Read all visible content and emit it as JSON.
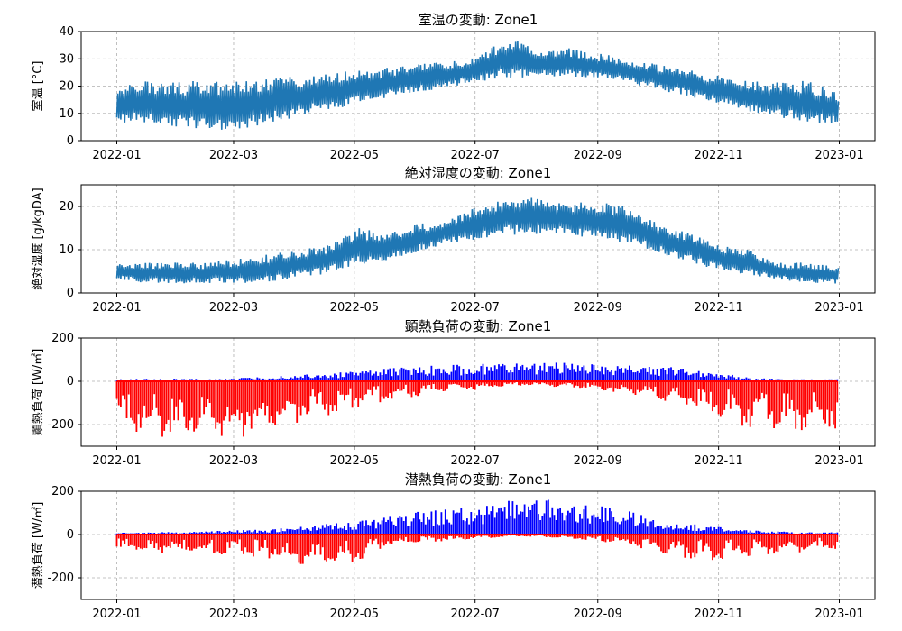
{
  "chart_data": [
    {
      "type": "line",
      "title": "室温の変動: Zone1",
      "ylabel": "室温 [°C]",
      "xlim": [
        "2021-12-14",
        "2023-01-19"
      ],
      "ylim": [
        0,
        40
      ],
      "yticks": [
        0,
        10,
        20,
        30,
        40
      ],
      "xticks": [
        "2022-01",
        "2022-03",
        "2022-05",
        "2022-07",
        "2022-09",
        "2022-11",
        "2023-01"
      ],
      "grid": true,
      "color": "#1f77b4",
      "series": [
        {
          "x": [
            "2022-01-01",
            "2022-01-15",
            "2022-02-01",
            "2022-02-15",
            "2022-03-01",
            "2022-03-15",
            "2022-04-01",
            "2022-04-15",
            "2022-05-01",
            "2022-05-15",
            "2022-06-01",
            "2022-06-15",
            "2022-07-01",
            "2022-07-15",
            "2022-08-01",
            "2022-08-15",
            "2022-09-01",
            "2022-09-15",
            "2022-10-01",
            "2022-10-15",
            "2022-11-01",
            "2022-11-15",
            "2022-12-01",
            "2022-12-15",
            "2022-12-31"
          ],
          "min": [
            6,
            5,
            4,
            3,
            3,
            5,
            8,
            10,
            13,
            15,
            17,
            19,
            21,
            22,
            23,
            23,
            22,
            21,
            18,
            16,
            13,
            10,
            8,
            6,
            5
          ],
          "max": [
            22,
            22,
            22,
            22,
            22,
            23,
            24,
            25,
            26,
            27,
            28,
            29,
            31,
            38,
            33,
            34,
            32,
            30,
            28,
            26,
            24,
            22,
            22,
            22,
            18
          ]
        }
      ]
    },
    {
      "type": "line",
      "title": "絶対湿度の変動: Zone1",
      "ylabel": "絶対湿度 [g/kgDA]",
      "xlim": [
        "2021-12-14",
        "2023-01-19"
      ],
      "ylim": [
        0,
        25
      ],
      "yticks": [
        0,
        10,
        20
      ],
      "xticks": [
        "2022-01",
        "2022-03",
        "2022-05",
        "2022-07",
        "2022-09",
        "2022-11",
        "2023-01"
      ],
      "grid": true,
      "color": "#1f77b4",
      "series": [
        {
          "x": [
            "2022-01-01",
            "2022-01-15",
            "2022-02-01",
            "2022-02-15",
            "2022-03-01",
            "2022-03-15",
            "2022-04-01",
            "2022-04-15",
            "2022-05-01",
            "2022-05-15",
            "2022-06-01",
            "2022-06-15",
            "2022-07-01",
            "2022-07-15",
            "2022-08-01",
            "2022-08-15",
            "2022-09-01",
            "2022-09-15",
            "2022-10-01",
            "2022-10-15",
            "2022-11-01",
            "2022-11-15",
            "2022-12-01",
            "2022-12-15",
            "2022-12-31"
          ],
          "min": [
            3,
            2,
            2,
            2,
            2,
            2,
            3,
            4,
            6,
            7,
            9,
            11,
            12,
            13,
            13,
            13,
            12,
            11,
            9,
            7,
            5,
            4,
            3,
            2,
            2
          ],
          "max": [
            7,
            7,
            7,
            7,
            8,
            9,
            10,
            11,
            15,
            14,
            16,
            17,
            20,
            22,
            22,
            21,
            21,
            20,
            16,
            14,
            11,
            10,
            7,
            7,
            6
          ]
        }
      ]
    },
    {
      "type": "bar",
      "title": "顕熱負荷の変動: Zone1",
      "ylabel": "顕熱負荷 [W/㎡]",
      "xlim": [
        "2021-12-14",
        "2023-01-19"
      ],
      "ylim": [
        -300,
        200
      ],
      "yticks": [
        -200,
        0,
        200
      ],
      "xticks": [
        "2022-01",
        "2022-03",
        "2022-05",
        "2022-07",
        "2022-09",
        "2022-11",
        "2023-01"
      ],
      "grid": true,
      "positive_color": "#0000ff",
      "negative_color": "#ff0000",
      "series": [
        {
          "x": [
            "2022-01-01",
            "2022-01-15",
            "2022-02-01",
            "2022-02-15",
            "2022-03-01",
            "2022-03-15",
            "2022-04-01",
            "2022-04-15",
            "2022-05-01",
            "2022-05-15",
            "2022-06-01",
            "2022-06-15",
            "2022-07-01",
            "2022-07-15",
            "2022-08-01",
            "2022-08-15",
            "2022-09-01",
            "2022-09-15",
            "2022-10-01",
            "2022-10-15",
            "2022-11-01",
            "2022-11-15",
            "2022-12-01",
            "2022-12-15",
            "2022-12-31"
          ],
          "max": [
            10,
            12,
            12,
            12,
            15,
            20,
            30,
            40,
            45,
            60,
            70,
            75,
            80,
            85,
            90,
            85,
            80,
            75,
            70,
            60,
            40,
            20,
            12,
            10,
            10
          ],
          "min": [
            -245,
            -260,
            -280,
            -260,
            -270,
            -230,
            -200,
            -160,
            -120,
            -90,
            -70,
            -50,
            -40,
            -20,
            -20,
            -30,
            -40,
            -60,
            -90,
            -120,
            -160,
            -220,
            -230,
            -230,
            -230
          ]
        }
      ]
    },
    {
      "type": "bar",
      "title": "潜熱負荷の変動: Zone1",
      "ylabel": "潜熱負荷 [W/㎡]",
      "xlim": [
        "2021-12-14",
        "2023-01-19"
      ],
      "ylim": [
        -300,
        200
      ],
      "yticks": [
        -200,
        0,
        200
      ],
      "xticks": [
        "2022-01",
        "2022-03",
        "2022-05",
        "2022-07",
        "2022-09",
        "2022-11",
        "2023-01"
      ],
      "grid": true,
      "positive_color": "#0000ff",
      "negative_color": "#ff0000",
      "series": [
        {
          "x": [
            "2022-01-01",
            "2022-01-15",
            "2022-02-01",
            "2022-02-15",
            "2022-03-01",
            "2022-03-15",
            "2022-04-01",
            "2022-04-15",
            "2022-05-01",
            "2022-05-15",
            "2022-06-01",
            "2022-06-15",
            "2022-07-01",
            "2022-07-15",
            "2022-08-01",
            "2022-08-15",
            "2022-09-01",
            "2022-09-15",
            "2022-10-01",
            "2022-10-15",
            "2022-11-01",
            "2022-11-15",
            "2022-12-01",
            "2022-12-15",
            "2022-12-31"
          ],
          "max": [
            10,
            10,
            12,
            15,
            20,
            25,
            35,
            50,
            60,
            90,
            110,
            120,
            130,
            160,
            170,
            150,
            140,
            110,
            70,
            50,
            40,
            20,
            15,
            10,
            10
          ],
          "min": [
            -80,
            -90,
            -95,
            -90,
            -100,
            -110,
            -140,
            -150,
            -130,
            -50,
            -40,
            -30,
            -20,
            -10,
            -10,
            -20,
            -30,
            -50,
            -80,
            -110,
            -120,
            -100,
            -90,
            -80,
            -70
          ]
        }
      ]
    }
  ]
}
